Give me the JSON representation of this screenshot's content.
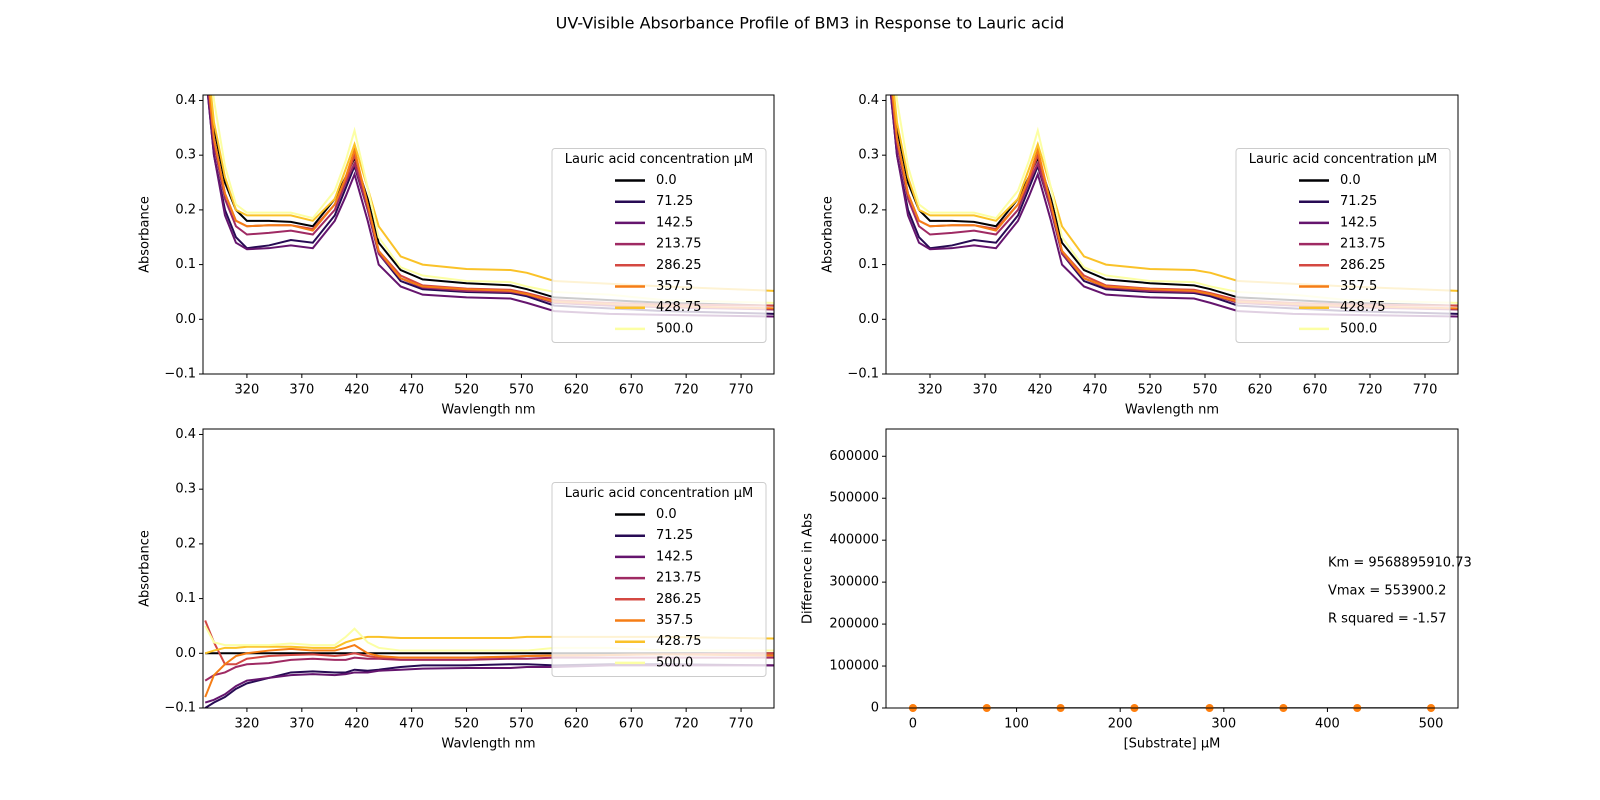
{
  "title": "UV-Visible Absorbance Profile of BM3 in Response to Lauric acid",
  "chart_data": [
    {
      "type": "line",
      "xlabel": "Wavlength nm",
      "ylabel": "Absorbance",
      "x": [
        280,
        290,
        300,
        310,
        320,
        340,
        360,
        380,
        400,
        410,
        418,
        430,
        440,
        460,
        480,
        520,
        560,
        575,
        600,
        650,
        700,
        800
      ],
      "xlim": [
        280,
        800
      ],
      "xticks": [
        320,
        370,
        420,
        470,
        520,
        570,
        620,
        670,
        720,
        770
      ],
      "ylim": [
        -0.1,
        0.41
      ],
      "yticks": [
        {
          "value": -0.1,
          "label": "−0.1"
        },
        {
          "value": 0,
          "label": "0.0"
        },
        0.1,
        0.2,
        0.3,
        0.4
      ],
      "legend_title": "Lauric acid concentration µM",
      "legend": "center right",
      "series": [
        {
          "name": "0.0",
          "color": "#000004",
          "values": [
            0.55,
            0.35,
            0.25,
            0.2,
            0.18,
            0.18,
            0.178,
            0.17,
            0.22,
            0.26,
            0.295,
            0.22,
            0.14,
            0.09,
            0.073,
            0.066,
            0.062,
            0.055,
            0.04,
            0.035,
            0.03,
            0.025
          ]
        },
        {
          "name": "71.25",
          "color": "#280b54",
          "values": [
            0.5,
            0.3,
            0.2,
            0.15,
            0.13,
            0.135,
            0.145,
            0.14,
            0.19,
            0.24,
            0.28,
            0.2,
            0.12,
            0.07,
            0.055,
            0.05,
            0.048,
            0.042,
            0.025,
            0.02,
            0.015,
            0.01
          ]
        },
        {
          "name": "142.5",
          "color": "#65156e",
          "values": [
            0.5,
            0.3,
            0.19,
            0.14,
            0.128,
            0.13,
            0.135,
            0.13,
            0.18,
            0.225,
            0.265,
            0.18,
            0.1,
            0.06,
            0.045,
            0.04,
            0.038,
            0.03,
            0.015,
            0.01,
            0.008,
            0.005
          ]
        },
        {
          "name": "213.75",
          "color": "#9f2a63",
          "values": [
            0.52,
            0.32,
            0.22,
            0.17,
            0.155,
            0.158,
            0.162,
            0.155,
            0.2,
            0.25,
            0.285,
            0.2,
            0.12,
            0.075,
            0.058,
            0.052,
            0.05,
            0.045,
            0.03,
            0.025,
            0.022,
            0.018
          ]
        },
        {
          "name": "286.25",
          "color": "#d44842",
          "values": [
            0.53,
            0.33,
            0.23,
            0.18,
            0.17,
            0.172,
            0.172,
            0.165,
            0.21,
            0.255,
            0.3,
            0.21,
            0.125,
            0.08,
            0.062,
            0.056,
            0.054,
            0.048,
            0.035,
            0.03,
            0.027,
            0.025
          ]
        },
        {
          "name": "357.5",
          "color": "#f57d15",
          "values": [
            0.53,
            0.33,
            0.23,
            0.18,
            0.17,
            0.172,
            0.172,
            0.162,
            0.21,
            0.26,
            0.31,
            0.21,
            0.125,
            0.075,
            0.06,
            0.055,
            0.052,
            0.046,
            0.032,
            0.028,
            0.024,
            0.02
          ]
        },
        {
          "name": "428.75",
          "color": "#fac228",
          "values": [
            0.55,
            0.36,
            0.26,
            0.2,
            0.19,
            0.19,
            0.19,
            0.18,
            0.22,
            0.275,
            0.32,
            0.24,
            0.17,
            0.115,
            0.1,
            0.092,
            0.09,
            0.085,
            0.07,
            0.065,
            0.06,
            0.052
          ]
        },
        {
          "name": "500.0",
          "color": "#fcffa4",
          "values": [
            0.6,
            0.4,
            0.28,
            0.21,
            0.195,
            0.195,
            0.195,
            0.185,
            0.235,
            0.29,
            0.345,
            0.24,
            0.15,
            0.095,
            0.08,
            0.07,
            0.068,
            0.06,
            0.05,
            0.045,
            0.035,
            0.03
          ]
        }
      ]
    },
    {
      "type": "line",
      "xlabel": "Wavlength nm",
      "ylabel": "Absorbance",
      "x": [
        280,
        290,
        300,
        310,
        320,
        340,
        360,
        380,
        400,
        410,
        418,
        430,
        440,
        460,
        480,
        520,
        560,
        575,
        600,
        650,
        700,
        800
      ],
      "xlim": [
        280,
        800
      ],
      "xticks": [
        320,
        370,
        420,
        470,
        520,
        570,
        620,
        670,
        720,
        770
      ],
      "ylim": [
        -0.1,
        0.41
      ],
      "yticks": [
        {
          "value": -0.1,
          "label": "−0.1"
        },
        {
          "value": 0,
          "label": "0.0"
        },
        0.1,
        0.2,
        0.3,
        0.4
      ],
      "legend_title": "Lauric acid concentration µM",
      "legend": "center right",
      "series": [
        {
          "name": "0.0",
          "color": "#000004",
          "values": [
            0.55,
            0.35,
            0.25,
            0.2,
            0.18,
            0.18,
            0.178,
            0.17,
            0.22,
            0.26,
            0.295,
            0.22,
            0.14,
            0.09,
            0.073,
            0.066,
            0.062,
            0.055,
            0.04,
            0.035,
            0.03,
            0.025
          ]
        },
        {
          "name": "71.25",
          "color": "#280b54",
          "values": [
            0.5,
            0.3,
            0.2,
            0.15,
            0.13,
            0.135,
            0.145,
            0.14,
            0.19,
            0.24,
            0.28,
            0.2,
            0.12,
            0.07,
            0.055,
            0.05,
            0.048,
            0.042,
            0.025,
            0.02,
            0.015,
            0.01
          ]
        },
        {
          "name": "142.5",
          "color": "#65156e",
          "values": [
            0.5,
            0.3,
            0.19,
            0.14,
            0.128,
            0.13,
            0.135,
            0.13,
            0.18,
            0.225,
            0.265,
            0.18,
            0.1,
            0.06,
            0.045,
            0.04,
            0.038,
            0.03,
            0.015,
            0.01,
            0.008,
            0.005
          ]
        },
        {
          "name": "213.75",
          "color": "#9f2a63",
          "values": [
            0.52,
            0.32,
            0.22,
            0.17,
            0.155,
            0.158,
            0.162,
            0.155,
            0.2,
            0.25,
            0.285,
            0.2,
            0.12,
            0.075,
            0.058,
            0.052,
            0.05,
            0.045,
            0.03,
            0.025,
            0.022,
            0.018
          ]
        },
        {
          "name": "286.25",
          "color": "#d44842",
          "values": [
            0.53,
            0.33,
            0.23,
            0.18,
            0.17,
            0.172,
            0.172,
            0.165,
            0.21,
            0.255,
            0.3,
            0.21,
            0.125,
            0.08,
            0.062,
            0.056,
            0.054,
            0.048,
            0.035,
            0.03,
            0.027,
            0.025
          ]
        },
        {
          "name": "357.5",
          "color": "#f57d15",
          "values": [
            0.53,
            0.33,
            0.23,
            0.18,
            0.17,
            0.172,
            0.172,
            0.162,
            0.21,
            0.26,
            0.31,
            0.21,
            0.125,
            0.075,
            0.06,
            0.055,
            0.052,
            0.046,
            0.032,
            0.028,
            0.024,
            0.02
          ]
        },
        {
          "name": "428.75",
          "color": "#fac228",
          "values": [
            0.55,
            0.36,
            0.26,
            0.2,
            0.19,
            0.19,
            0.19,
            0.18,
            0.22,
            0.275,
            0.32,
            0.24,
            0.17,
            0.115,
            0.1,
            0.092,
            0.09,
            0.085,
            0.07,
            0.065,
            0.06,
            0.052
          ]
        },
        {
          "name": "500.0",
          "color": "#fcffa4",
          "values": [
            0.6,
            0.4,
            0.28,
            0.21,
            0.195,
            0.195,
            0.195,
            0.185,
            0.235,
            0.29,
            0.345,
            0.24,
            0.15,
            0.095,
            0.08,
            0.07,
            0.068,
            0.06,
            0.05,
            0.045,
            0.035,
            0.03
          ]
        }
      ]
    },
    {
      "type": "line",
      "xlabel": "Wavlength nm",
      "ylabel": "Absorbance",
      "x": [
        282,
        290,
        300,
        310,
        320,
        340,
        360,
        380,
        400,
        410,
        418,
        430,
        440,
        460,
        480,
        520,
        560,
        575,
        600,
        650,
        700,
        800
      ],
      "xlim": [
        280,
        800
      ],
      "xticks": [
        320,
        370,
        420,
        470,
        520,
        570,
        620,
        670,
        720,
        770
      ],
      "ylim": [
        -0.1,
        0.41
      ],
      "yticks": [
        {
          "value": -0.1,
          "label": "−0.1"
        },
        {
          "value": 0,
          "label": "0.0"
        },
        0.1,
        0.2,
        0.3,
        0.4
      ],
      "legend_title": "Lauric acid concentration µM",
      "legend": "center right",
      "series": [
        {
          "name": "0.0",
          "color": "#000004",
          "values": [
            0,
            0,
            0,
            0,
            0,
            0,
            0,
            0,
            0,
            0,
            0,
            0,
            0,
            0,
            0,
            0,
            0,
            0,
            0,
            0,
            0,
            0
          ]
        },
        {
          "name": "71.25",
          "color": "#280b54",
          "values": [
            -0.1,
            -0.09,
            -0.08,
            -0.065,
            -0.055,
            -0.045,
            -0.035,
            -0.033,
            -0.035,
            -0.035,
            -0.03,
            -0.032,
            -0.03,
            -0.025,
            -0.022,
            -0.022,
            -0.02,
            -0.02,
            -0.022,
            -0.02,
            -0.02,
            -0.022
          ]
        },
        {
          "name": "142.5",
          "color": "#65156e",
          "values": [
            -0.09,
            -0.085,
            -0.075,
            -0.06,
            -0.05,
            -0.045,
            -0.04,
            -0.038,
            -0.04,
            -0.038,
            -0.035,
            -0.035,
            -0.032,
            -0.03,
            -0.028,
            -0.027,
            -0.027,
            -0.025,
            -0.025,
            -0.022,
            -0.022,
            -0.022
          ]
        },
        {
          "name": "213.75",
          "color": "#9f2a63",
          "values": [
            -0.05,
            -0.04,
            -0.035,
            -0.025,
            -0.02,
            -0.018,
            -0.012,
            -0.01,
            -0.012,
            -0.012,
            -0.008,
            -0.01,
            -0.01,
            -0.012,
            -0.012,
            -0.012,
            -0.01,
            -0.01,
            -0.008,
            -0.008,
            -0.008,
            -0.008
          ]
        },
        {
          "name": "286.25",
          "color": "#d44842",
          "values": [
            0.06,
            0.02,
            -0.02,
            -0.02,
            -0.01,
            -0.005,
            -0.003,
            -0.002,
            -0.005,
            -0.003,
            0,
            -0.005,
            -0.008,
            -0.008,
            -0.008,
            -0.008,
            -0.007,
            -0.005,
            -0.004,
            -0.003,
            -0.002,
            0
          ]
        },
        {
          "name": "357.5",
          "color": "#f57d15",
          "values": [
            -0.08,
            -0.04,
            -0.02,
            -0.005,
            0,
            0.005,
            0.008,
            0.005,
            0.005,
            0.01,
            0.015,
            0,
            -0.005,
            -0.008,
            -0.008,
            -0.008,
            -0.006,
            -0.005,
            -0.004,
            -0.003,
            -0.002,
            -0.004
          ]
        },
        {
          "name": "428.75",
          "color": "#fac228",
          "values": [
            0,
            0.005,
            0.01,
            0.01,
            0.012,
            0.012,
            0.012,
            0.01,
            0.01,
            0.02,
            0.025,
            0.03,
            0.03,
            0.028,
            0.028,
            0.028,
            0.028,
            0.03,
            0.03,
            0.03,
            0.03,
            0.027
          ]
        },
        {
          "name": "500.0",
          "color": "#fcffa4",
          "values": [
            0.05,
            0.02,
            0.015,
            0.015,
            0.015,
            0.015,
            0.018,
            0.015,
            0.015,
            0.03,
            0.045,
            0.02,
            0.01,
            0.005,
            0.005,
            0.005,
            0.005,
            0.005,
            0.01,
            0.01,
            0.005,
            0.005
          ]
        }
      ]
    },
    {
      "type": "scatter",
      "xlabel": "[Substrate] µM",
      "ylabel": "Difference in Abs",
      "x": [
        0,
        71.25,
        142.5,
        213.75,
        286.25,
        357.5,
        428.75,
        500
      ],
      "values": [
        0,
        -0.01,
        -0.02,
        0.01,
        0.015,
        0.02,
        0.03,
        0.045
      ],
      "color": "#ff7f0e",
      "fit_values": [
        0,
        0.004,
        0.008,
        0.012,
        0.017,
        0.021,
        0.025,
        0.029
      ],
      "fit_color": "#000000",
      "xlim": [
        -26,
        526
      ],
      "xticks": [
        0,
        100,
        200,
        300,
        400,
        500
      ],
      "ylim": [
        0,
        665000
      ],
      "yticks": [
        0,
        100000,
        200000,
        300000,
        400000,
        500000,
        600000
      ],
      "annotations": [
        "Km = 9568895910.73",
        "Vmax = 553900.2",
        "R squared = -1.57"
      ]
    }
  ]
}
